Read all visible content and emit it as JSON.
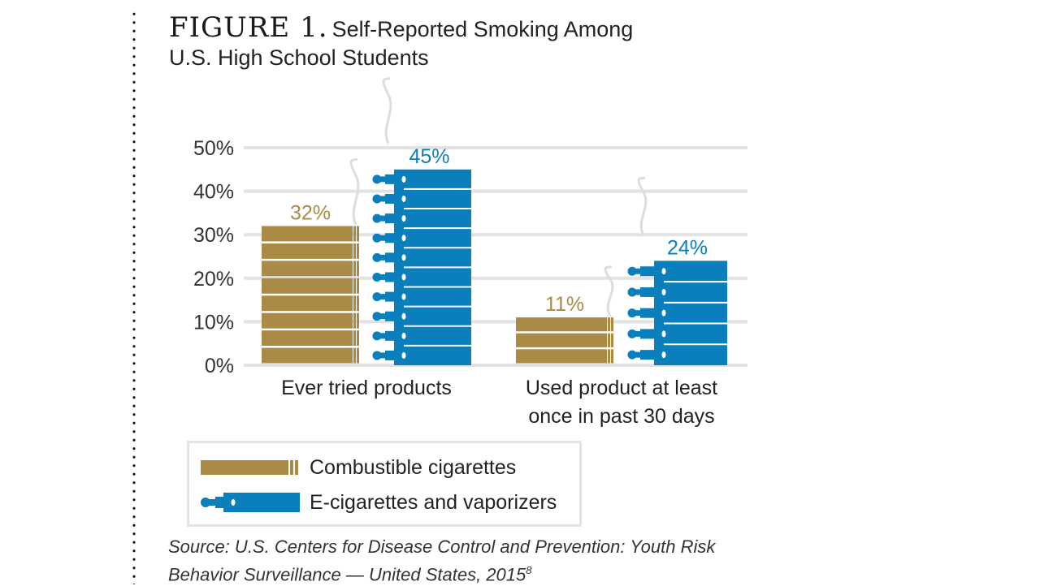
{
  "figure": {
    "label": "FIGURE 1.",
    "title_line1": "Self-Reported Smoking Among",
    "title_line2": "U.S. High School Students"
  },
  "colors": {
    "combustible": "#ab8a45",
    "ecig": "#0a7fbb",
    "grid": "#e2e2e2",
    "smoke": "#dddddd"
  },
  "chart_data": {
    "type": "bar",
    "title": "Self-Reported Smoking Among U.S. High School Students",
    "xlabel": "",
    "ylabel": "",
    "ylim": [
      0,
      50
    ],
    "yticks": [
      0,
      10,
      20,
      30,
      40,
      50
    ],
    "ytick_labels": [
      "0%",
      "10%",
      "20%",
      "30%",
      "40%",
      "50%"
    ],
    "grid": true,
    "categories": [
      "Ever tried products",
      "Used product at least once in past 30 days"
    ],
    "category_lines": [
      [
        "Ever tried products"
      ],
      [
        "Used product at least",
        "once in past 30 days"
      ]
    ],
    "series": [
      {
        "name": "Combustible cigarettes",
        "values": [
          32,
          11
        ],
        "labels": [
          "32%",
          "11%"
        ]
      },
      {
        "name": "E-cigarettes and vaporizers",
        "values": [
          45,
          24
        ],
        "labels": [
          "45%",
          "24%"
        ]
      }
    ],
    "legend_position": "bottom-left"
  },
  "legend": {
    "items": [
      {
        "label": "Combustible cigarettes",
        "icon": "cigarette-icon"
      },
      {
        "label": "E-cigarettes and vaporizers",
        "icon": "e-cigarette-icon"
      }
    ]
  },
  "source": {
    "text_line1": "Source: U.S. Centers for Disease Control and Prevention: Youth Risk",
    "text_line2": "Behavior Surveillance — United States, 2015",
    "footnote": "8"
  }
}
